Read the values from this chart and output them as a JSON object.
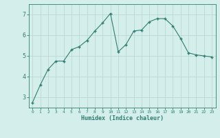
{
  "x": [
    0,
    1,
    2,
    3,
    4,
    5,
    6,
    7,
    8,
    9,
    10,
    11,
    12,
    13,
    14,
    15,
    16,
    17,
    18,
    19,
    20,
    21,
    22,
    23
  ],
  "y": [
    2.75,
    3.6,
    4.35,
    4.75,
    4.75,
    5.3,
    5.45,
    5.75,
    6.2,
    6.6,
    7.05,
    5.2,
    5.55,
    6.2,
    6.25,
    6.65,
    6.8,
    6.8,
    6.45,
    5.85,
    5.15,
    5.05,
    5.0,
    4.95
  ],
  "line_color": "#2e7d6e",
  "bg_color": "#d4eeec",
  "grid_color": "#bcd8d5",
  "xlabel": "Humidex (Indice chaleur)",
  "xlabel_color": "#2e7d6e",
  "tick_color": "#2e7d6e",
  "ylim": [
    2.5,
    7.5
  ],
  "xlim": [
    -0.5,
    23.5
  ],
  "yticks": [
    3,
    4,
    5,
    6,
    7
  ],
  "xticks": [
    0,
    1,
    2,
    3,
    4,
    5,
    6,
    7,
    8,
    9,
    10,
    11,
    12,
    13,
    14,
    15,
    16,
    17,
    18,
    19,
    20,
    21,
    22,
    23
  ],
  "marker": "+"
}
